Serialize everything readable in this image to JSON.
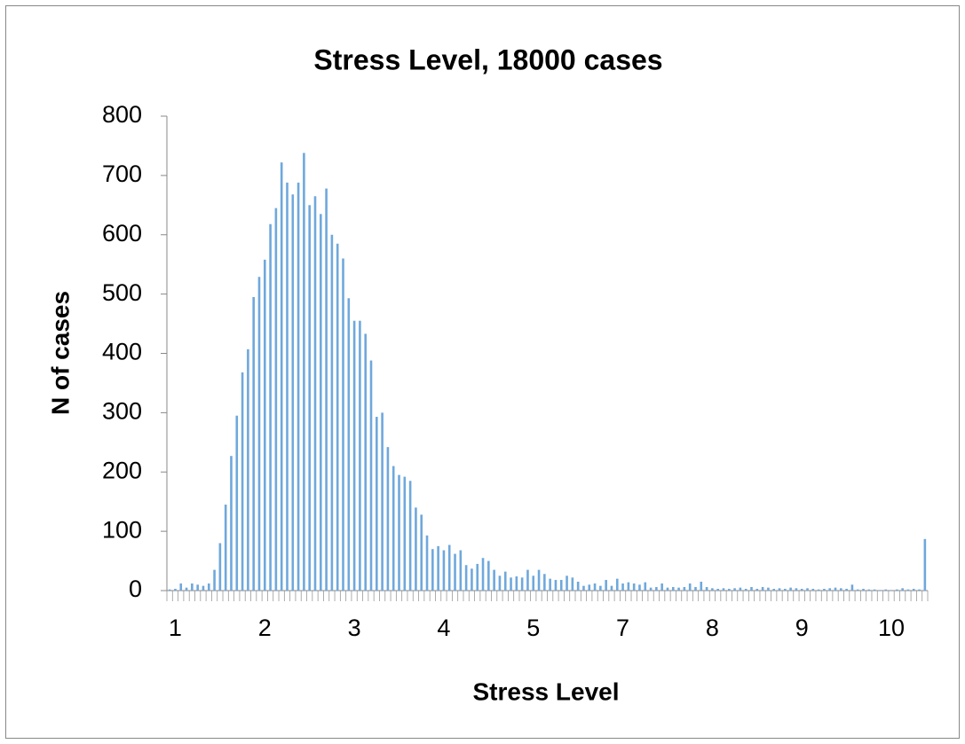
{
  "chart_data": {
    "type": "bar",
    "title": "Stress Level, 18000 cases",
    "x_label": "Stress Level",
    "y_label": "N of cases",
    "color": "#6fa8dc",
    "categories": [
      null,
      "1",
      null,
      null,
      null,
      null,
      null,
      null,
      null,
      null,
      null,
      null,
      null,
      null,
      null,
      null,
      null,
      "2",
      null,
      null,
      null,
      null,
      null,
      null,
      null,
      null,
      null,
      null,
      null,
      null,
      null,
      null,
      null,
      "3",
      null,
      null,
      null,
      null,
      null,
      null,
      null,
      null,
      null,
      null,
      null,
      null,
      null,
      null,
      null,
      "4",
      null,
      null,
      null,
      null,
      null,
      null,
      null,
      null,
      null,
      null,
      null,
      null,
      null,
      null,
      null,
      "5",
      null,
      null,
      null,
      null,
      null,
      null,
      null,
      null,
      null,
      null,
      null,
      null,
      null,
      null,
      null,
      "7",
      null,
      null,
      null,
      null,
      null,
      null,
      null,
      null,
      null,
      null,
      null,
      null,
      null,
      null,
      null,
      "8",
      null,
      null,
      null,
      null,
      null,
      null,
      null,
      null,
      null,
      null,
      null,
      null,
      null,
      null,
      null,
      "9",
      null,
      null,
      null,
      null,
      null,
      null,
      null,
      null,
      null,
      null,
      null,
      null,
      null,
      null,
      null,
      "10",
      null,
      null,
      null,
      null,
      null,
      null
    ],
    "values": [
      2,
      3,
      12,
      5,
      12,
      10,
      8,
      12,
      35,
      80,
      145,
      227,
      295,
      368,
      407,
      495,
      529,
      558,
      618,
      645,
      722,
      688,
      668,
      688,
      738,
      650,
      665,
      635,
      678,
      600,
      585,
      560,
      493,
      455,
      455,
      433,
      388,
      293,
      300,
      242,
      210,
      195,
      192,
      185,
      140,
      128,
      93,
      70,
      75,
      68,
      77,
      62,
      68,
      43,
      37,
      45,
      55,
      50,
      35,
      25,
      32,
      22,
      24,
      22,
      35,
      25,
      35,
      28,
      20,
      18,
      18,
      25,
      22,
      15,
      8,
      10,
      12,
      8,
      18,
      8,
      20,
      12,
      14,
      12,
      10,
      14,
      5,
      6,
      12,
      5,
      6,
      5,
      6,
      12,
      6,
      15,
      6,
      4,
      3,
      4,
      3,
      4,
      5,
      3,
      6,
      3,
      6,
      5,
      3,
      4,
      3,
      5,
      4,
      3,
      4,
      3,
      2,
      3,
      4,
      5,
      4,
      3,
      10,
      2,
      3,
      2,
      2,
      1,
      2,
      1,
      2,
      4,
      2,
      3,
      2,
      87
    ],
    "ylim": [
      0,
      800
    ],
    "yticks": [
      0,
      100,
      200,
      300,
      400,
      500,
      600,
      700,
      800
    ]
  }
}
